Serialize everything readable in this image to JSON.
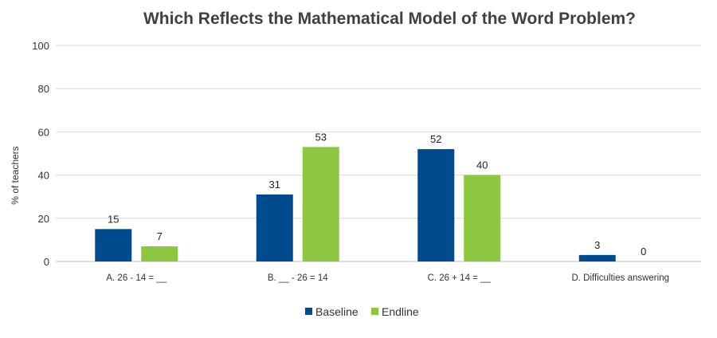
{
  "chart_data": {
    "type": "bar",
    "title": "Which Reflects the Mathematical Model of the Word Problem?",
    "xlabel": "",
    "ylabel": "% of teachers",
    "ylim": [
      0,
      100
    ],
    "yticks": [
      0,
      20,
      40,
      60,
      80,
      100
    ],
    "grid": true,
    "legend_position": "bottom",
    "categories": [
      "A. 26 - 14 = __",
      "B. __ - 26 = 14",
      "C. 26 + 14 = __",
      "D. Difficulties answering"
    ],
    "series": [
      {
        "name": "Baseline",
        "color": "#004B8D",
        "values": [
          15,
          31,
          52,
          3
        ]
      },
      {
        "name": "Endline",
        "color": "#8DC63F",
        "values": [
          7,
          53,
          40,
          0
        ]
      }
    ]
  }
}
